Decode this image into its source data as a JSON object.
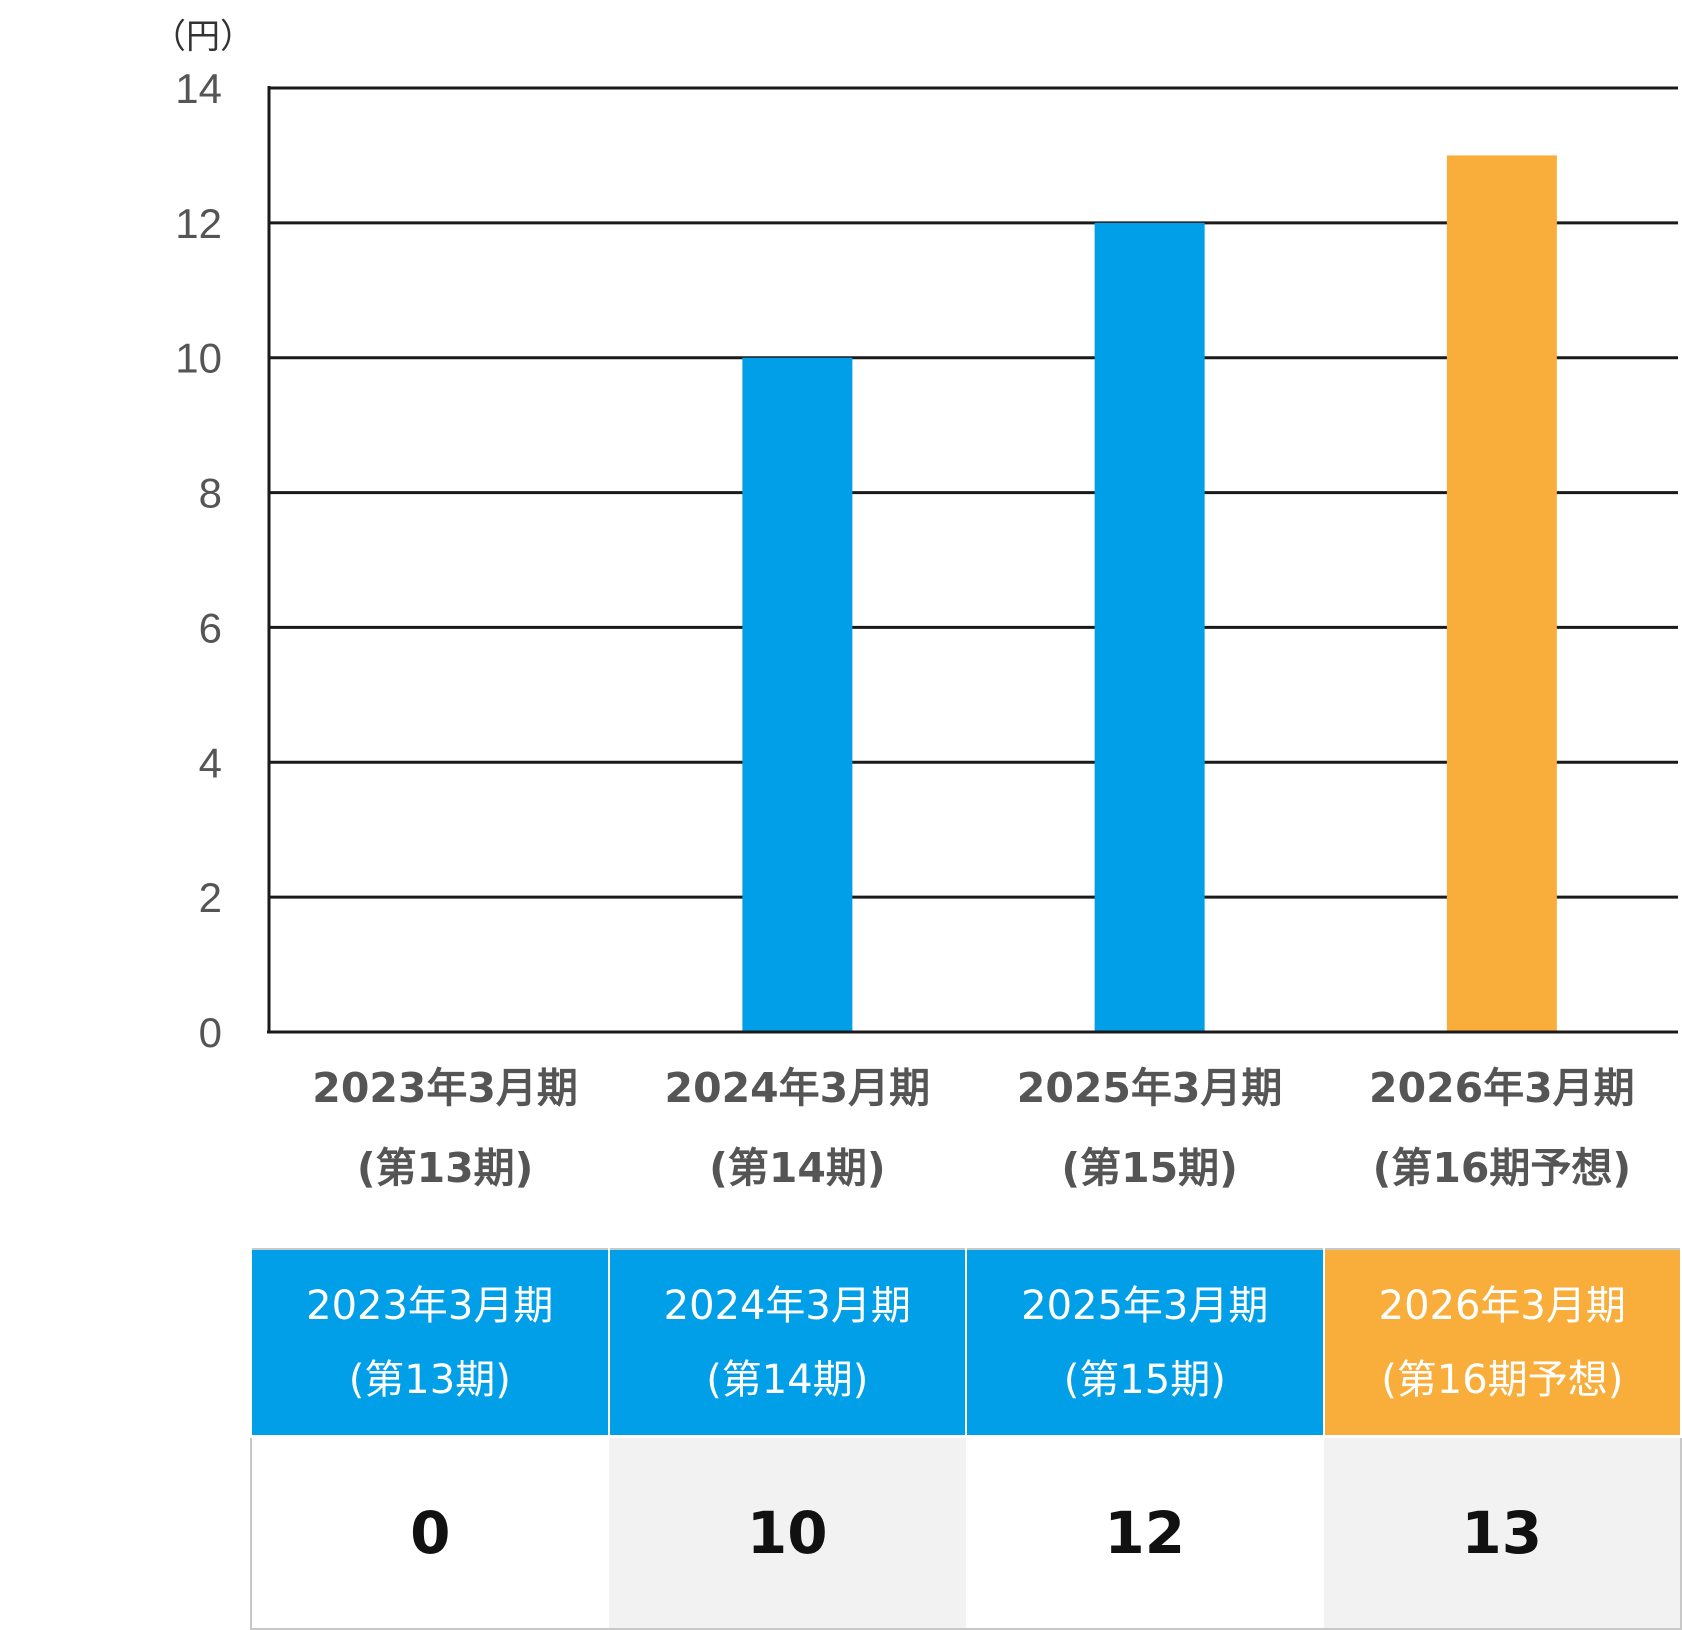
{
  "chart_data": {
    "type": "bar",
    "unit_label": "（円）",
    "categories": [
      [
        "2023年3月期",
        "(第13期)"
      ],
      [
        "2024年3月期",
        "(第14期)"
      ],
      [
        "2025年3月期",
        "(第15期)"
      ],
      [
        "2026年3月期",
        "(第16期予想)"
      ]
    ],
    "values": [
      0,
      10,
      12,
      13
    ],
    "bar_colors": [
      "#009fe8",
      "#009fe8",
      "#009fe8",
      "#f9ae3b"
    ],
    "ylim": [
      0,
      14
    ],
    "yticks": [
      0,
      2,
      4,
      6,
      8,
      10,
      12,
      14
    ],
    "grid": true,
    "title": "",
    "xlabel": "",
    "ylabel": ""
  },
  "table": {
    "headers": [
      {
        "line1": "2023年3月期",
        "line2": "(第13期)",
        "color": "#009fe8"
      },
      {
        "line1": "2024年3月期",
        "line2": "(第14期)",
        "color": "#009fe8"
      },
      {
        "line1": "2025年3月期",
        "line2": "(第15期)",
        "color": "#009fe8"
      },
      {
        "line1": "2026年3月期",
        "line2": "(第16期予想)",
        "color": "#f9ae3b"
      }
    ],
    "values": [
      "0",
      "10",
      "12",
      "13"
    ],
    "cell_colors": [
      "#ffffff",
      "#f2f2f2",
      "#ffffff",
      "#f2f2f2"
    ]
  }
}
